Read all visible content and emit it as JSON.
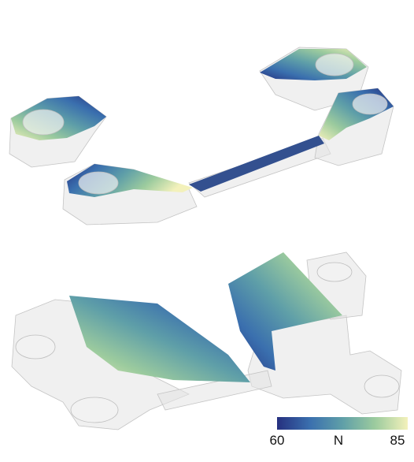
{
  "colorbar": {
    "min": 60,
    "label": "N",
    "max": 85,
    "colors": [
      "#26307f",
      "#3a6fae",
      "#5f9fa8",
      "#9ccb9e",
      "#f3f1bb"
    ]
  }
}
